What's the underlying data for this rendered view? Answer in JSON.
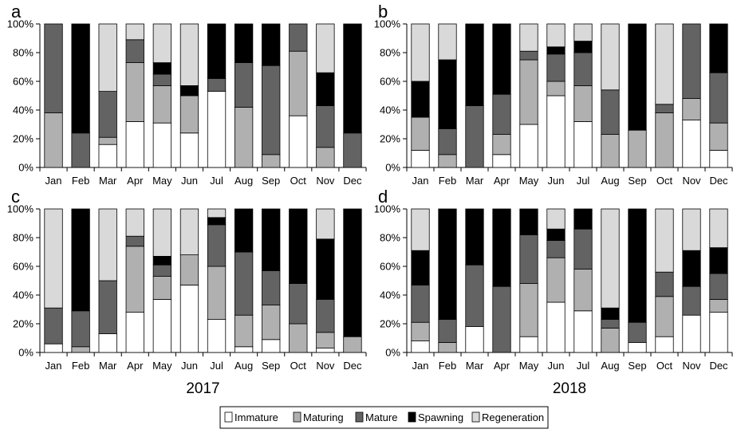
{
  "legend": [
    {
      "key": "immature",
      "label": "Immature",
      "color": "#ffffff"
    },
    {
      "key": "maturing",
      "label": "Maturing",
      "color": "#b0b0b0"
    },
    {
      "key": "mature",
      "label": "Mature",
      "color": "#636363"
    },
    {
      "key": "spawning",
      "label": "Spawning",
      "color": "#000000"
    },
    {
      "key": "regeneration",
      "label": "Regeneration",
      "color": "#d9d9d9"
    }
  ],
  "year_labels": [
    "2017",
    "2018"
  ],
  "chart_data": [
    {
      "panel": "a",
      "year": "2017",
      "type": "bar",
      "stacked": true,
      "categories": [
        "Jan",
        "Feb",
        "Mar",
        "Apr",
        "May",
        "Jun",
        "Jul",
        "Aug",
        "Sep",
        "Oct",
        "Nov",
        "Dec"
      ],
      "ylim": [
        0,
        100
      ],
      "ytick_labels": [
        "0%",
        "20%",
        "40%",
        "60%",
        "80%",
        "100%"
      ],
      "series": [
        {
          "name": "Immature",
          "values": [
            0,
            0,
            16,
            32,
            31,
            24,
            53,
            0,
            0,
            36,
            0,
            0
          ]
        },
        {
          "name": "Maturing",
          "values": [
            38,
            0,
            5,
            41,
            26,
            26,
            0,
            42,
            9,
            45,
            14,
            0
          ]
        },
        {
          "name": "Mature",
          "values": [
            62,
            24,
            32,
            16,
            8,
            0,
            9,
            31,
            62,
            19,
            29,
            24
          ]
        },
        {
          "name": "Spawning",
          "values": [
            0,
            76,
            0,
            0,
            8,
            7,
            38,
            27,
            29,
            0,
            23,
            76
          ]
        },
        {
          "name": "Regeneration",
          "values": [
            0,
            0,
            47,
            11,
            27,
            43,
            0,
            0,
            0,
            0,
            34,
            0
          ]
        }
      ]
    },
    {
      "panel": "b",
      "year": "2018",
      "type": "bar",
      "stacked": true,
      "categories": [
        "Jan",
        "Feb",
        "Mar",
        "Apr",
        "May",
        "Jun",
        "Jul",
        "Aug",
        "Sep",
        "Oct",
        "Nov",
        "Dec"
      ],
      "ylim": [
        0,
        100
      ],
      "ytick_labels": [
        "0%",
        "20%",
        "40%",
        "60%",
        "80%",
        "100%"
      ],
      "series": [
        {
          "name": "Immature",
          "values": [
            12,
            0,
            0,
            9,
            30,
            50,
            32,
            0,
            0,
            0,
            33,
            12
          ]
        },
        {
          "name": "Maturing",
          "values": [
            23,
            9,
            0,
            14,
            45,
            10,
            25,
            23,
            26,
            38,
            15,
            19
          ]
        },
        {
          "name": "Mature",
          "values": [
            0,
            18,
            43,
            28,
            6,
            19,
            23,
            31,
            0,
            6,
            52,
            35
          ]
        },
        {
          "name": "Spawning",
          "values": [
            25,
            48,
            57,
            49,
            0,
            5,
            8,
            0,
            74,
            0,
            0,
            34
          ]
        },
        {
          "name": "Regeneration",
          "values": [
            40,
            25,
            0,
            0,
            19,
            16,
            12,
            46,
            0,
            56,
            0,
            0
          ]
        }
      ]
    },
    {
      "panel": "c",
      "year": "2017",
      "type": "bar",
      "stacked": true,
      "categories": [
        "Jan",
        "Feb",
        "Mar",
        "Apr",
        "May",
        "Jun",
        "Jul",
        "Aug",
        "Sep",
        "Oct",
        "Nov",
        "Dec"
      ],
      "ylim": [
        0,
        100
      ],
      "ytick_labels": [
        "0%",
        "20%",
        "40%",
        "60%",
        "80%",
        "100%"
      ],
      "series": [
        {
          "name": "Immature",
          "values": [
            6,
            0,
            13,
            28,
            37,
            47,
            23,
            4,
            9,
            0,
            3,
            0
          ]
        },
        {
          "name": "Maturing",
          "values": [
            0,
            4,
            0,
            46,
            16,
            21,
            37,
            22,
            24,
            20,
            11,
            11
          ]
        },
        {
          "name": "Mature",
          "values": [
            25,
            25,
            37,
            7,
            8,
            0,
            29,
            44,
            24,
            28,
            23,
            0
          ]
        },
        {
          "name": "Spawning",
          "values": [
            0,
            71,
            0,
            0,
            6,
            0,
            5,
            30,
            43,
            52,
            42,
            89
          ]
        },
        {
          "name": "Regeneration",
          "values": [
            69,
            0,
            50,
            19,
            33,
            32,
            6,
            0,
            0,
            0,
            21,
            0
          ]
        }
      ]
    },
    {
      "panel": "d",
      "year": "2018",
      "type": "bar",
      "stacked": true,
      "categories": [
        "Jan",
        "Feb",
        "Mar",
        "Apr",
        "May",
        "Jun",
        "Jul",
        "Aug",
        "Sep",
        "Oct",
        "Nov",
        "Dec"
      ],
      "ylim": [
        0,
        100
      ],
      "ytick_labels": [
        "0%",
        "20%",
        "40%",
        "60%",
        "80%",
        "100%"
      ],
      "series": [
        {
          "name": "Immature",
          "values": [
            8,
            0,
            18,
            0,
            11,
            35,
            29,
            0,
            7,
            11,
            26,
            28
          ]
        },
        {
          "name": "Maturing",
          "values": [
            13,
            7,
            0,
            0,
            37,
            31,
            29,
            17,
            0,
            28,
            0,
            9
          ]
        },
        {
          "name": "Mature",
          "values": [
            26,
            16,
            43,
            46,
            34,
            12,
            28,
            6,
            14,
            17,
            20,
            18
          ]
        },
        {
          "name": "Spawning",
          "values": [
            24,
            77,
            39,
            54,
            18,
            8,
            14,
            8,
            79,
            0,
            25,
            18
          ]
        },
        {
          "name": "Regeneration",
          "values": [
            29,
            0,
            0,
            0,
            0,
            14,
            0,
            69,
            0,
            44,
            29,
            27
          ]
        }
      ]
    }
  ]
}
